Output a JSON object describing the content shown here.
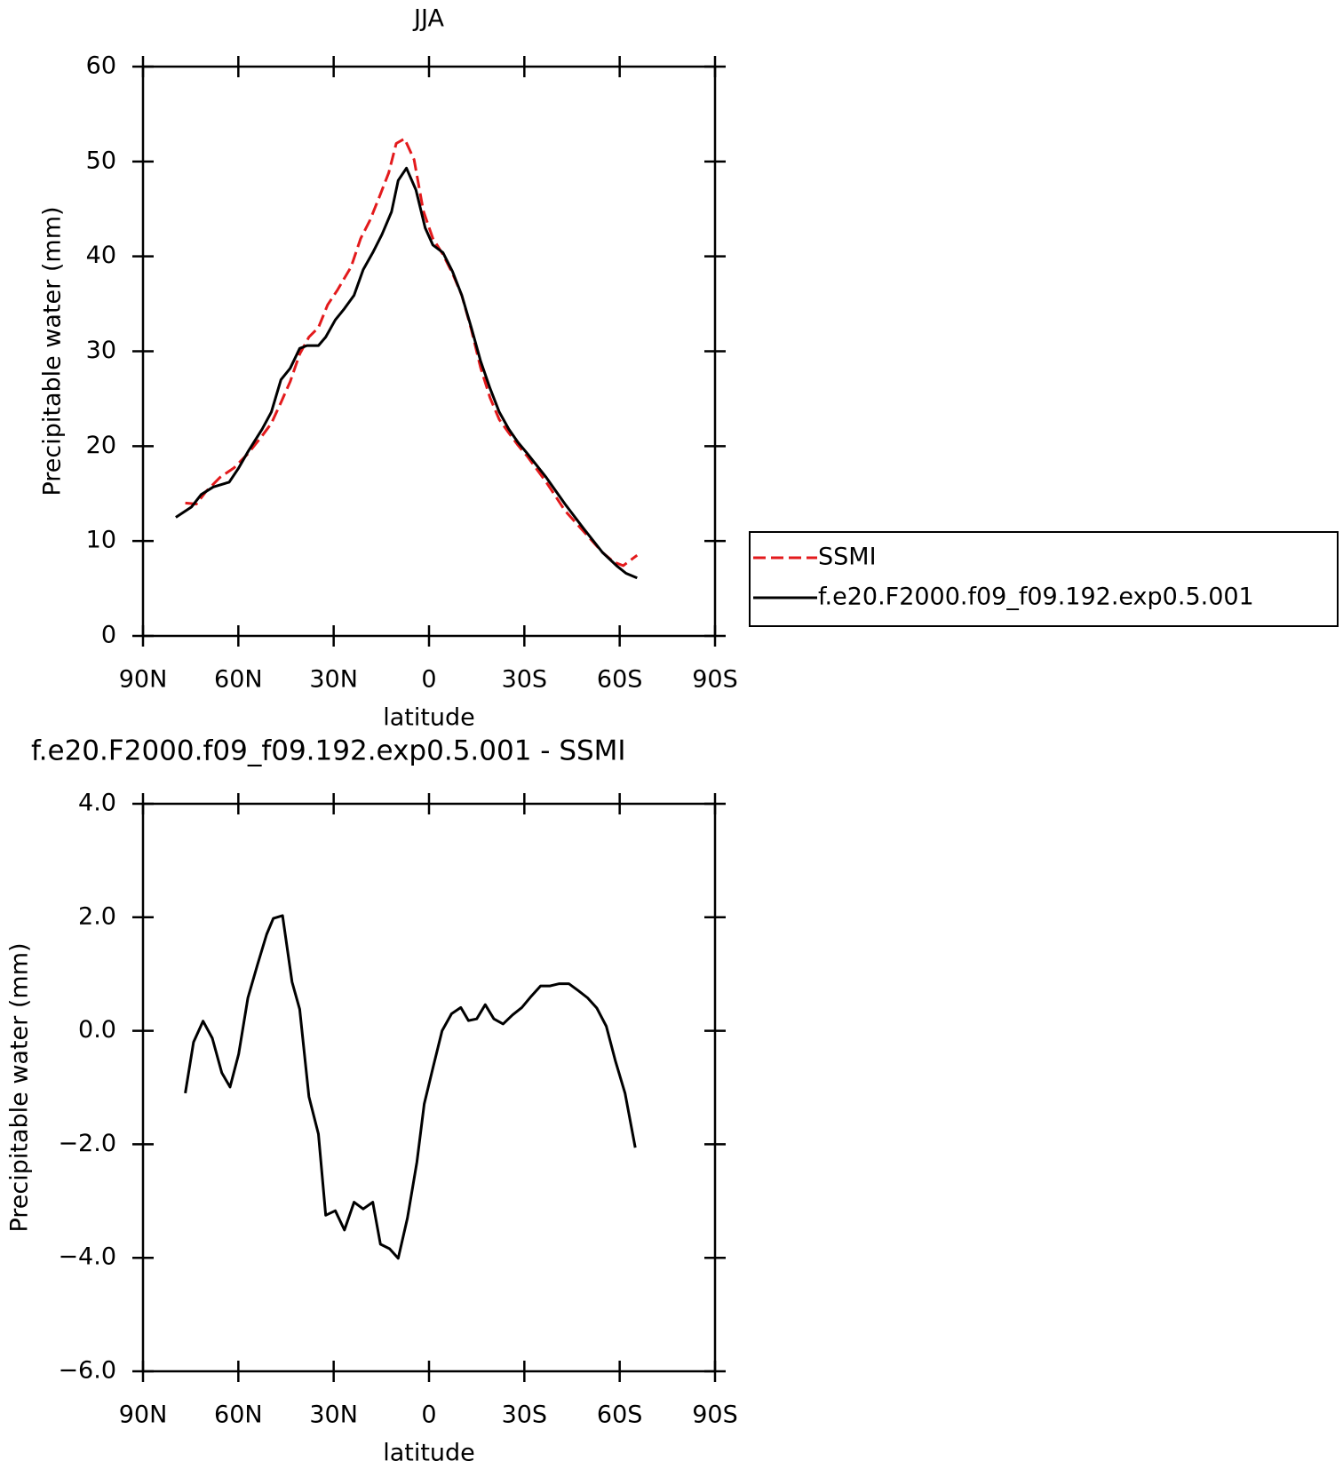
{
  "chart_data": [
    {
      "type": "line",
      "title": "JJA",
      "xlabel": "latitude",
      "ylabel": "Precipitable water (mm)",
      "xlim": [
        90,
        -90
      ],
      "xticks": [
        {
          "value": 90,
          "label": "90N"
        },
        {
          "value": 60,
          "label": "60N"
        },
        {
          "value": 30,
          "label": "30N"
        },
        0,
        {
          "value": -30,
          "label": "30S"
        },
        {
          "value": -60,
          "label": "60S"
        },
        {
          "value": -90,
          "label": "90S"
        }
      ],
      "ylim": [
        0,
        60
      ],
      "yticks": [
        0,
        10,
        20,
        30,
        40,
        50,
        60
      ],
      "legend": "right",
      "series": [
        {
          "name": "SSMI",
          "color": "#e31a1c",
          "dashed": true,
          "x": [
            76.7,
            73.2,
            70.2,
            65.8,
            61.4,
            57.0,
            52.5,
            49.6,
            46.6,
            43.7,
            40.7,
            37.8,
            34.8,
            31.9,
            28.9,
            24.5,
            21.5,
            18.6,
            15.6,
            12.7,
            10.3,
            7.7,
            4.7,
            1.8,
            -1.2,
            -4.4,
            -7.4,
            -10.3,
            -13.3,
            -16.2,
            -19.2,
            -22.1,
            -25.1,
            -28.0,
            -31.0,
            -36.9,
            -42.8,
            -48.7,
            -54.6,
            -58.1,
            -61.1,
            -65.5
          ],
          "values": [
            14.0,
            13.9,
            15.2,
            16.7,
            17.7,
            19.2,
            21.1,
            22.4,
            24.6,
            26.8,
            29.7,
            31.5,
            32.5,
            34.9,
            36.4,
            38.9,
            41.9,
            43.8,
            46.3,
            48.8,
            51.9,
            52.4,
            50.2,
            44.8,
            41.9,
            40.2,
            38.2,
            35.9,
            32.3,
            28.3,
            25.1,
            22.8,
            21.4,
            20.1,
            18.9,
            16.2,
            13.2,
            11.0,
            8.8,
            7.8,
            7.4,
            8.5
          ]
        },
        {
          "name": "f.e20.F2000.f09_f09.192.exp0.5.001",
          "color": "#000000",
          "dashed": false,
          "x": [
            79.7,
            74.7,
            71.7,
            67.9,
            62.9,
            59.9,
            57.0,
            52.5,
            49.6,
            46.6,
            43.7,
            40.7,
            38.4,
            34.8,
            32.5,
            29.5,
            26.6,
            23.6,
            20.7,
            17.7,
            14.8,
            11.8,
            9.7,
            7.1,
            4.1,
            1.2,
            -1.2,
            -4.4,
            -7.4,
            -10.3,
            -13.3,
            -16.2,
            -19.2,
            -22.1,
            -25.1,
            -28.0,
            -31.0,
            -36.9,
            -42.8,
            -48.7,
            -54.6,
            -59.0,
            -62.0,
            -65.5
          ],
          "values": [
            12.5,
            13.6,
            14.9,
            15.7,
            16.2,
            17.7,
            19.4,
            21.8,
            23.6,
            27.0,
            28.2,
            30.3,
            30.6,
            30.6,
            31.5,
            33.3,
            34.5,
            35.9,
            38.6,
            40.4,
            42.3,
            44.7,
            48.0,
            49.3,
            47.0,
            43.0,
            41.2,
            40.4,
            38.4,
            35.9,
            32.5,
            29.0,
            26.1,
            23.6,
            21.8,
            20.4,
            19.2,
            16.7,
            13.9,
            11.3,
            8.8,
            7.4,
            6.6,
            6.1
          ]
        }
      ]
    },
    {
      "type": "line",
      "title": "f.e20.F2000.f09_f09.192.exp0.5.001 - SSMI",
      "xlabel": "latitude",
      "ylabel": "Precipitable water (mm)",
      "xlim": [
        90,
        -90
      ],
      "xticks": [
        {
          "value": 90,
          "label": "90N"
        },
        {
          "value": 60,
          "label": "60N"
        },
        {
          "value": 30,
          "label": "30N"
        },
        0,
        {
          "value": -30,
          "label": "30S"
        },
        {
          "value": -60,
          "label": "60S"
        },
        {
          "value": -90,
          "label": "90S"
        }
      ],
      "ylim": [
        -6,
        4
      ],
      "yticks": [
        {
          "value": -6,
          "label": "−6.0"
        },
        {
          "value": -4,
          "label": "−4.0"
        },
        {
          "value": -2,
          "label": "−2.0"
        },
        {
          "value": 0,
          "label": "0.0"
        },
        {
          "value": 2,
          "label": "2.0"
        },
        {
          "value": 4,
          "label": "4.0"
        }
      ],
      "color": "#000000",
      "x": [
        76.7,
        74.1,
        71.1,
        68.2,
        65.2,
        62.6,
        59.9,
        57.0,
        54.0,
        51.1,
        49.0,
        46.1,
        43.1,
        40.7,
        37.8,
        34.8,
        32.5,
        29.5,
        26.6,
        23.6,
        20.7,
        17.7,
        15.3,
        12.4,
        9.7,
        6.8,
        3.8,
        1.5,
        -1.2,
        -4.1,
        -7.1,
        -10.0,
        -12.4,
        -15.0,
        -17.7,
        -20.4,
        -23.3,
        -26.3,
        -29.2,
        -32.2,
        -35.1,
        -38.1,
        -41.0,
        -44.0,
        -46.9,
        -49.9,
        -52.8,
        -55.8,
        -58.7,
        -61.7,
        -64.9
      ],
      "values": [
        -1.1,
        -0.2,
        0.17,
        -0.13,
        -0.74,
        -0.99,
        -0.41,
        0.58,
        1.16,
        1.7,
        1.98,
        2.03,
        0.86,
        0.38,
        -1.16,
        -1.82,
        -3.25,
        -3.17,
        -3.51,
        -3.02,
        -3.14,
        -3.02,
        -3.76,
        -3.84,
        -4.01,
        -3.3,
        -2.31,
        -1.29,
        -0.66,
        0.0,
        0.3,
        0.41,
        0.18,
        0.21,
        0.46,
        0.21,
        0.12,
        0.28,
        0.41,
        0.61,
        0.79,
        0.79,
        0.83,
        0.83,
        0.71,
        0.58,
        0.4,
        0.08,
        -0.54,
        -1.1,
        -2.06
      ]
    }
  ]
}
